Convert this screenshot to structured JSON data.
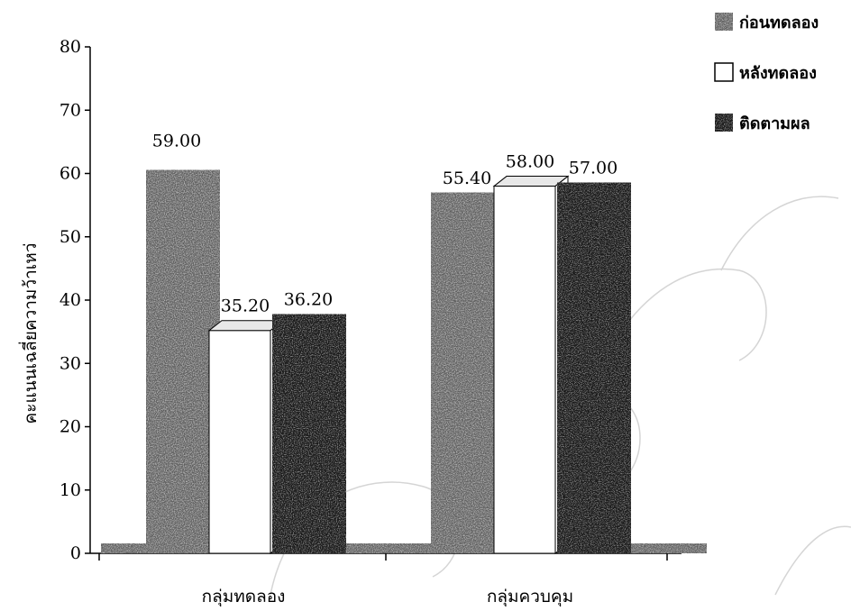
{
  "chart_data": {
    "type": "bar",
    "categories": [
      "กลุ่มทดลอง",
      "กลุ่มควบคุม"
    ],
    "series": [
      {
        "name": "ก่อนทดลอง",
        "values": [
          59.0,
          55.4
        ],
        "labels": [
          "59.00",
          "55.40"
        ],
        "fill": "speckled-gray"
      },
      {
        "name": "หลังทดลอง",
        "values": [
          35.2,
          58.0
        ],
        "labels": [
          "35.20",
          "58.00"
        ],
        "fill": "white"
      },
      {
        "name": "ติดตามผล",
        "values": [
          36.2,
          57.0
        ],
        "labels": [
          "36.20",
          "57.00"
        ],
        "fill": "speckled-dark"
      }
    ],
    "title": "",
    "xlabel": "",
    "ylabel": "คะแนนเฉลี่ยความว้าเหว่",
    "ylim": [
      0,
      80
    ],
    "yticks": [
      0,
      10,
      20,
      30,
      40,
      50,
      60,
      70,
      80
    ],
    "grid": false,
    "legend_position": "top-right",
    "style": "3d"
  },
  "colors": {
    "series_light": "#8a8a8a",
    "series_white": "#ffffff",
    "series_dark": "#3a3a3a",
    "edge": "#000000"
  }
}
